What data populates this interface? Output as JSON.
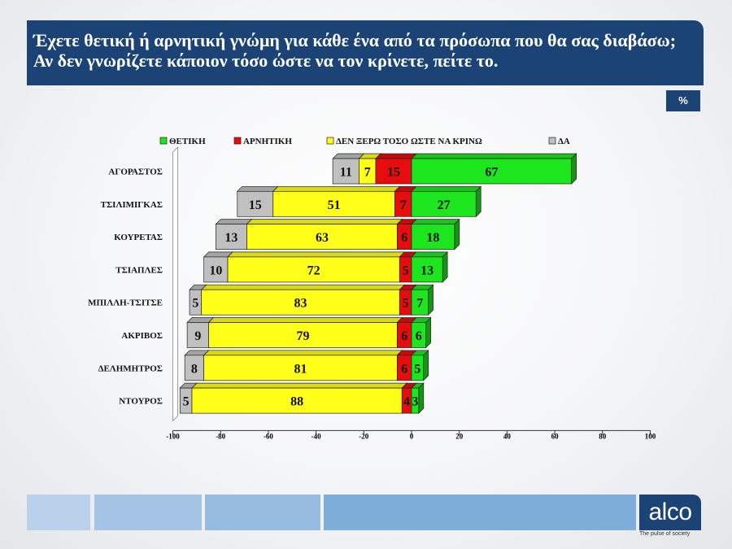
{
  "header": {
    "question": "Έχετε θετική ή αρνητική γνώμη για κάθε ένα από τα πρόσωπα που θα σας διαβάσω; Αν δεν γνωρίζετε κάποιον τόσο ώστε να τον κρίνετε, πείτε το.",
    "unit_badge": "%"
  },
  "brand": {
    "logo": "alco",
    "tagline": "The pulse of society"
  },
  "colors": {
    "positive": "#1ee61e",
    "negative": "#e60d0d",
    "dont_know": "#ffff1a",
    "no_answer": "#c0c0c0",
    "title_bg": "#1b4375"
  },
  "chart_data": {
    "type": "bar",
    "orientation": "horizontal-diverging",
    "categories": [
      "ΑΓΟΡΑΣΤΟΣ",
      "ΤΣΙΛΙΜΙΓΚΑΣ",
      "ΚΟΥΡΕΤΑΣ",
      "ΤΣΙΑΠΛΕΣ",
      "ΜΠΙΛΛΗ-ΤΣΙΤΣΕ",
      "ΑΚΡΙΒΟΣ",
      "ΔΕΛΗΜΗΤΡΟΣ",
      "ΝΤΟΥΡΟΣ"
    ],
    "series": [
      {
        "name": "ΘΕΤΙΚΗ",
        "key": "positive",
        "values": [
          67,
          27,
          18,
          13,
          7,
          6,
          5,
          3
        ]
      },
      {
        "name": "ΑΡΝΗΤΙΚΗ",
        "key": "negative",
        "values": [
          15,
          7,
          6,
          5,
          5,
          6,
          6,
          4
        ]
      },
      {
        "name": "ΔΕΝ ΞΕΡΩ ΤΟΣΟ ΩΣΤΕ ΝΑ ΚΡΙΝΩ",
        "key": "dont_know",
        "values": [
          7,
          51,
          63,
          72,
          83,
          79,
          81,
          88
        ]
      },
      {
        "name": "ΔΑ",
        "key": "no_answer",
        "values": [
          11,
          15,
          13,
          10,
          5,
          9,
          8,
          5
        ]
      }
    ],
    "xlim": [
      -100,
      100
    ],
    "xticks": [
      "-100",
      "-80",
      "-60",
      "-40",
      "-20",
      "0",
      "20",
      "40",
      "60",
      "80",
      "100"
    ],
    "legend_position": "top",
    "grid": false
  }
}
